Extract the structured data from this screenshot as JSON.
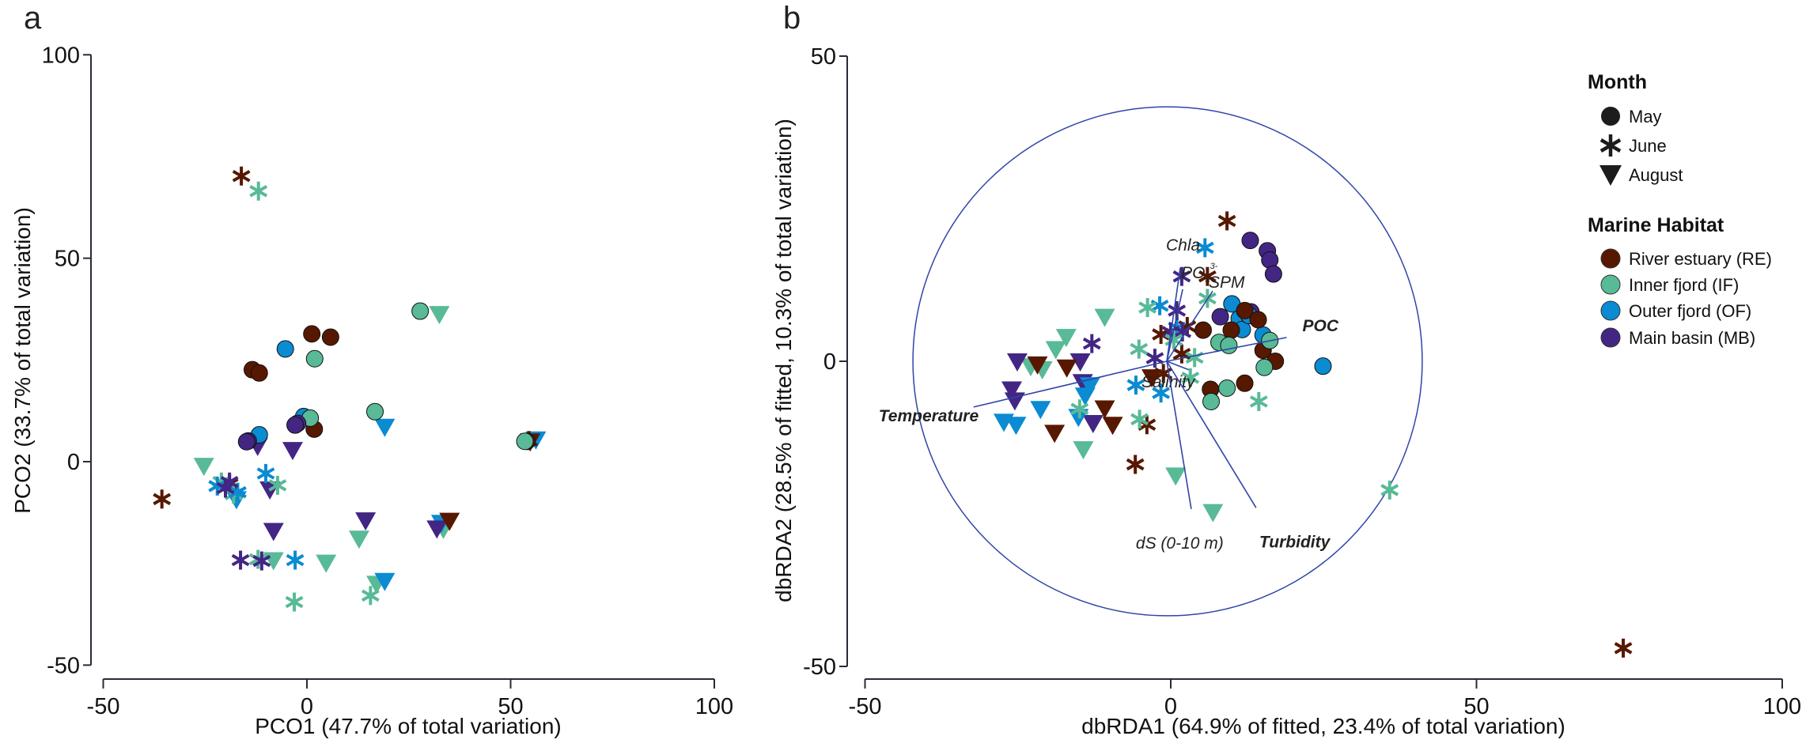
{
  "colors": {
    "RE": "#571800",
    "IF": "#58ba96",
    "OF": "#0a8bd2",
    "MB": "#432684",
    "axis": "#2a2a3a",
    "vector": "#2f45a8"
  },
  "chart_data": [
    {
      "type": "scatter",
      "panel_label": "a",
      "xlabel": "PCO1 (47.7% of total variation)",
      "ylabel": "PCO2 (33.7% of total variation)",
      "xlim": [
        -50,
        100
      ],
      "ylim": [
        -50,
        100
      ],
      "xticks": [
        "-50",
        "0",
        "50",
        "100"
      ],
      "yticks": [
        "-50",
        "0",
        "50",
        "100"
      ],
      "grid": false,
      "points": {
        "May": {
          "RE": [
            [
              1.2,
              31.4
            ],
            [
              5.8,
              30.6
            ],
            [
              -13.4,
              22.6
            ],
            [
              -11.7,
              21.8
            ],
            [
              1.8,
              8.0
            ],
            [
              54,
              5
            ]
          ],
          "OF": [
            [
              -5.3,
              27.7
            ],
            [
              -0.8,
              11.1
            ],
            [
              -11.7,
              6.6
            ]
          ],
          "IF": [
            [
              1.9,
              25.3
            ],
            [
              0.8,
              10.7
            ],
            [
              16.7,
              12.3
            ],
            [
              27.8,
              37.0
            ],
            [
              53.5,
              5
            ]
          ],
          "MB": [
            [
              -2.3,
              9.4
            ],
            [
              -2.9,
              9.0
            ],
            [
              -14.4,
              5.1
            ],
            [
              -14.8,
              4.9
            ]
          ]
        },
        "June": {
          "RE": [
            [
              -16.1,
              70.2
            ],
            [
              -35.6,
              -9.2
            ],
            [
              -19,
              -5.5
            ],
            [
              54.5,
              5.2
            ]
          ],
          "IF": [
            [
              -11.9,
              66.5
            ],
            [
              -21,
              -5
            ],
            [
              -7.2,
              -5.8
            ],
            [
              -12,
              -24
            ],
            [
              15.6,
              -32.9
            ],
            [
              -3.1,
              -34.5
            ],
            [
              -18,
              -8
            ]
          ],
          "OF": [
            [
              -22,
              -6
            ],
            [
              -10.1,
              -2.9
            ],
            [
              -2.9,
              -24.2
            ],
            [
              -17,
              -7.5
            ]
          ],
          "MB": [
            [
              -20,
              -6.5
            ],
            [
              -19,
              -5
            ],
            [
              -16.3,
              -24.2
            ],
            [
              -11.1,
              -24.4
            ]
          ]
        },
        "August": {
          "IF": [
            [
              32.5,
              36.3
            ],
            [
              -25.3,
              -1.0
            ],
            [
              12.8,
              -18.9
            ],
            [
              -8.2,
              -24.2
            ],
            [
              4.7,
              -24.8
            ],
            [
              17.1,
              -30
            ],
            [
              33.5,
              -16.5
            ]
          ],
          "OF": [
            [
              19.1,
              8.6
            ],
            [
              -17.3,
              -9.2
            ],
            [
              19.1,
              -29.3
            ],
            [
              33,
              -15
            ],
            [
              56.2,
              5.5
            ]
          ],
          "MB": [
            [
              -12.1,
              3.9
            ],
            [
              -3.5,
              2.9
            ],
            [
              -9.1,
              -6.8
            ],
            [
              -8.2,
              -17.0
            ],
            [
              14.4,
              -14.4
            ],
            [
              31.9,
              -16.4
            ]
          ],
          "RE": [
            [
              35,
              -14.5
            ],
            [
              54.8,
              5
            ]
          ]
        }
      }
    },
    {
      "type": "scatter",
      "panel_label": "b",
      "xlabel": "dbRDA1 (64.9% of fitted, 23.4% of total variation)",
      "ylabel": "dbRDA2 (28.5% of fitted, 10.3% of total variation)",
      "xlim": [
        -50,
        100
      ],
      "ylim": [
        -50,
        50
      ],
      "xticks": [
        "-50",
        "0",
        "50",
        "100"
      ],
      "yticks": [
        "-50",
        "0",
        "50"
      ],
      "grid": false,
      "correlation_circle_radius": 41.7,
      "vectors": [
        {
          "name": "Temperature",
          "x": -31.6,
          "y": -7.5,
          "bold": true
        },
        {
          "name": "POC",
          "x": 19.6,
          "y": 3.9,
          "bold": true
        },
        {
          "name": "Salinity",
          "x": 3.6,
          "y": -1.4,
          "bold": false
        },
        {
          "name": "SPM",
          "x": 7.5,
          "y": 11.5,
          "bold": false
        },
        {
          "name": "PO",
          "sub": "4",
          "sup": "3-",
          "x": 2.6,
          "y": 11.8,
          "bold": false
        },
        {
          "name": "Chla",
          "x": 2.2,
          "y": 15.3,
          "bold": false
        },
        {
          "name": "dS (0-10 m)",
          "x": 4.0,
          "y": -24.2,
          "bold": false
        },
        {
          "name": "Turbidity",
          "x": 14.6,
          "y": -24.0,
          "bold": true
        }
      ],
      "points": {
        "May": {
          "MB": [
            [
              13.0,
              19.8
            ],
            [
              15.8,
              18.1
            ],
            [
              16.2,
              16.6
            ],
            [
              16.8,
              14.3
            ],
            [
              8.1,
              7.3
            ],
            [
              13.1,
              8.1
            ]
          ],
          "OF": [
            [
              10.0,
              9.4
            ],
            [
              11.2,
              7.0
            ],
            [
              11.7,
              5.2
            ],
            [
              15.1,
              4.3
            ],
            [
              24.9,
              -0.8
            ],
            [
              12.8,
              7.5
            ]
          ],
          "RE": [
            [
              12.1,
              8.3
            ],
            [
              14.3,
              6.8
            ],
            [
              5.3,
              5.1
            ],
            [
              9.9,
              5.1
            ],
            [
              15.1,
              1.8
            ],
            [
              17.1,
              0
            ],
            [
              12.1,
              -3.6
            ],
            [
              6.5,
              -4.6
            ]
          ],
          "IF": [
            [
              16.2,
              3.4
            ],
            [
              7.9,
              3.1
            ],
            [
              9.5,
              2.6
            ],
            [
              15.3,
              -1.0
            ],
            [
              9.2,
              -4.4
            ],
            [
              6.6,
              -6.6
            ]
          ]
        },
        "June": {
          "RE": [
            [
              9.2,
              23.0
            ],
            [
              6.0,
              13.9
            ],
            [
              -1.6,
              4.4
            ],
            [
              2.7,
              5.7
            ],
            [
              1.8,
              1.2
            ],
            [
              -1.2,
              -2.0
            ],
            [
              -3.9,
              -10.4
            ],
            [
              -5.8,
              -16.9
            ],
            [
              74,
              -47
            ]
          ],
          "OF": [
            [
              5.6,
              18.6
            ],
            [
              -1.8,
              9.1
            ],
            [
              -5.7,
              -3.9
            ],
            [
              -1.6,
              -5.2
            ],
            [
              1.0,
              5.5
            ]
          ],
          "MB": [
            [
              1.8,
              13.9
            ],
            [
              1.0,
              8.3
            ],
            [
              0,
              4.8
            ],
            [
              1.9,
              4.8
            ],
            [
              -2.6,
              0.5
            ],
            [
              -12.9,
              2.9
            ]
          ],
          "IF": [
            [
              6.0,
              10.3
            ],
            [
              -3.8,
              8.8
            ],
            [
              -5.2,
              2.0
            ],
            [
              3.9,
              0.6
            ],
            [
              3.2,
              -2.7
            ],
            [
              14.4,
              -6.6
            ],
            [
              -14.9,
              -7.8
            ],
            [
              -5.1,
              -9.5
            ],
            [
              35.8,
              -21.1
            ],
            [
              0.5,
              3.5
            ]
          ]
        },
        "August": {
          "IF": [
            [
              -10.8,
              7.3
            ],
            [
              -17.1,
              4.0
            ],
            [
              -18.8,
              2.0
            ],
            [
              -22.9,
              -0.8
            ],
            [
              -21.0,
              -1.3
            ],
            [
              -14.3,
              -14.4
            ],
            [
              0.8,
              -18.7
            ],
            [
              6.9,
              -24.7
            ]
          ],
          "MB": [
            [
              -25.1,
              0
            ],
            [
              -14.8,
              0
            ],
            [
              -26.0,
              -4.6
            ],
            [
              -25.5,
              -6.4
            ],
            [
              -14.4,
              -3.4
            ],
            [
              -12.7,
              -10.1
            ]
          ],
          "RE": [
            [
              -17.0,
              -1.0
            ],
            [
              -10.8,
              -7.7
            ],
            [
              -9.5,
              -10.4
            ],
            [
              -19.0,
              -11.7
            ],
            [
              -3.1,
              -2.6
            ],
            [
              -21.8,
              -0.5
            ]
          ],
          "OF": [
            [
              -13.2,
              -3.9
            ],
            [
              -14.0,
              -5.6
            ],
            [
              -21.3,
              -7.8
            ],
            [
              -27.3,
              -9.9
            ],
            [
              -25.3,
              -10.4
            ],
            [
              -15.1,
              -9.1
            ]
          ]
        }
      }
    }
  ],
  "legend": {
    "month_title": "Month",
    "months": [
      {
        "key": "May",
        "label": "May",
        "icon": "circle"
      },
      {
        "key": "June",
        "label": "June",
        "icon": "asterisk"
      },
      {
        "key": "August",
        "label": "August",
        "icon": "down-triangle"
      }
    ],
    "habitat_title": "Marine Habitat",
    "habitats": [
      {
        "key": "RE",
        "label": "River estuary (RE)"
      },
      {
        "key": "IF",
        "label": "Inner fjord (IF)"
      },
      {
        "key": "OF",
        "label": "Outer fjord (OF)"
      },
      {
        "key": "MB",
        "label": "Main basin (MB)"
      }
    ]
  }
}
